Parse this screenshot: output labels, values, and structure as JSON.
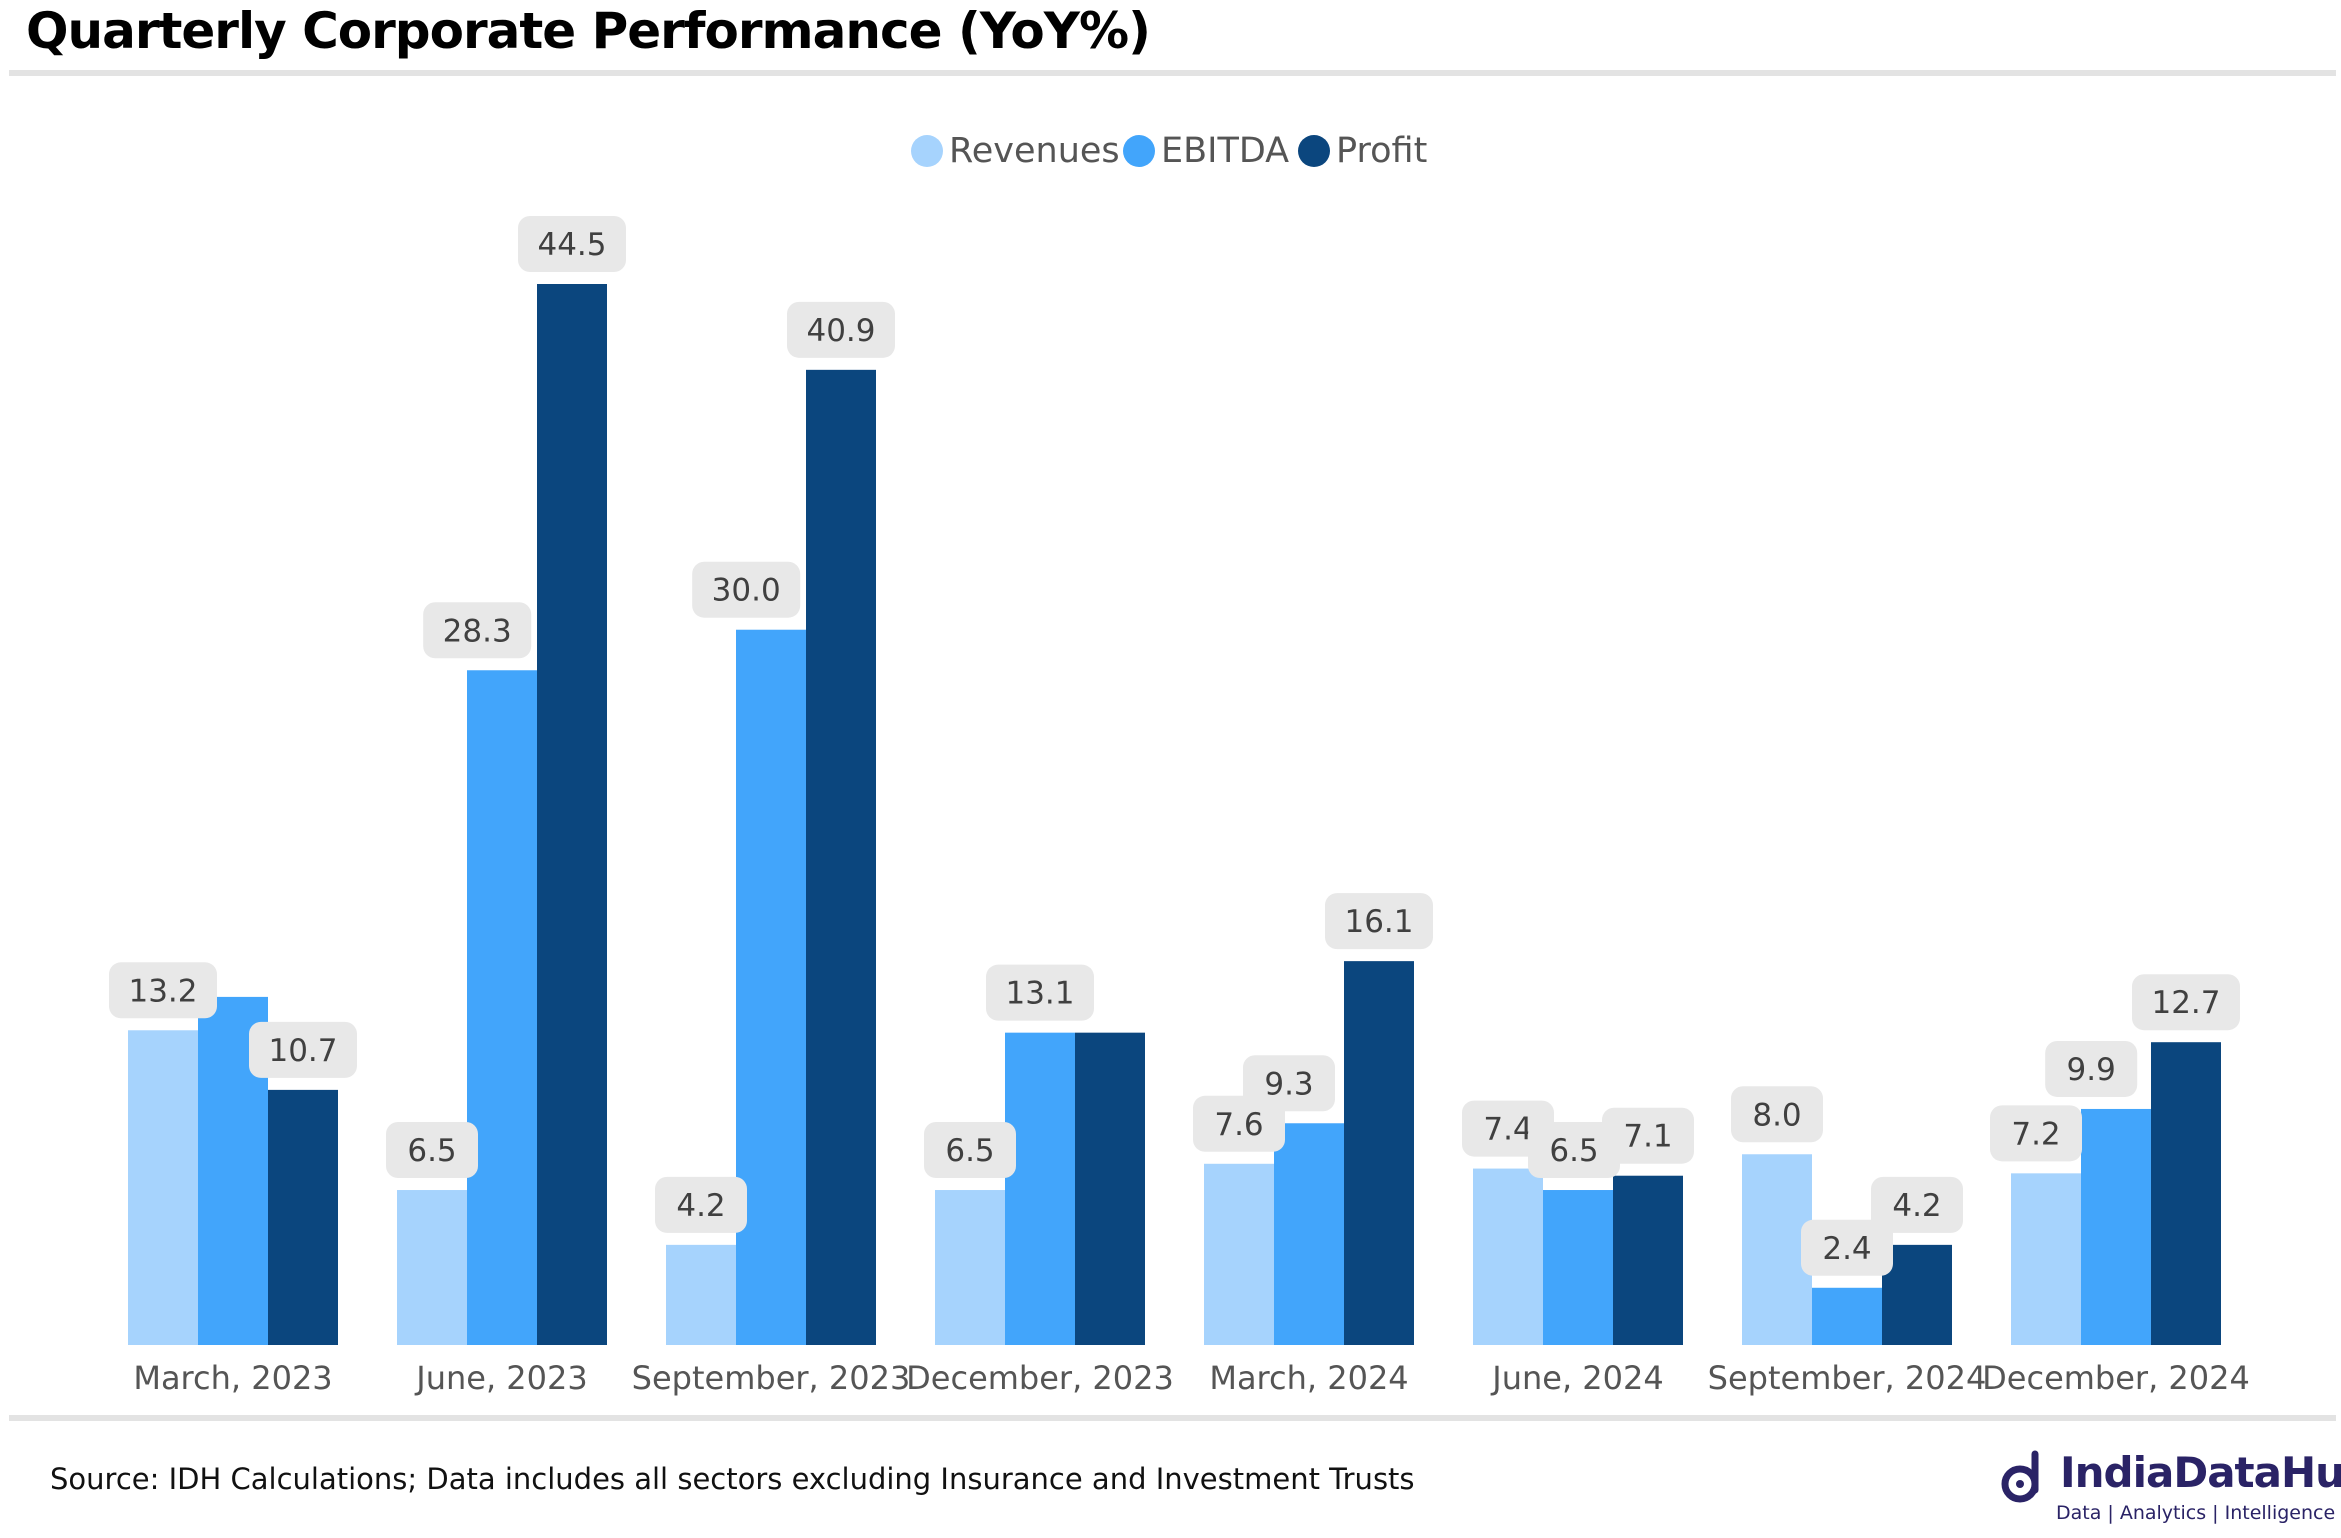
{
  "title": "Quarterly Corporate Performance (YoY%)",
  "source": "Source: IDH Calculations; Data includes all sectors excluding Insurance and Investment Trusts",
  "logo": {
    "name": "IndiaDataHub",
    "tagline": "Data | Analytics | Intelligence",
    "icon": "d-logo-icon"
  },
  "colors": {
    "Revenues": "#a6d3fd",
    "EBITDA": "#42a5fb",
    "Profit": "#0b467e",
    "label_bg": "#e8e8e8",
    "label_text": "#404040",
    "rule": "#e3e3e3"
  },
  "chart_data": {
    "type": "bar",
    "title": "Quarterly Corporate Performance (YoY%)",
    "categories": [
      "March, 2023",
      "June, 2023",
      "September, 2023",
      "December, 2023",
      "March, 2024",
      "June, 2024",
      "September, 2024",
      "December, 2024"
    ],
    "series": [
      {
        "name": "Revenues",
        "values": [
          13.2,
          6.5,
          4.2,
          6.5,
          7.6,
          7.4,
          8.0,
          7.2
        ]
      },
      {
        "name": "EBITDA",
        "values": [
          14.6,
          28.3,
          30.0,
          13.1,
          9.3,
          6.5,
          2.4,
          9.9
        ]
      },
      {
        "name": "Profit",
        "values": [
          10.7,
          44.5,
          40.9,
          13.1,
          16.1,
          7.1,
          4.2,
          12.7
        ]
      }
    ],
    "data_labels": [
      [
        "13.2",
        "6.5",
        "4.2",
        "6.5",
        "7.6",
        "7.4",
        "8.0",
        "7.2"
      ],
      [
        "",
        "28.3",
        "30.0",
        "13.1",
        "9.3",
        "6.5",
        "2.4",
        "9.9"
      ],
      [
        "10.7",
        "44.5",
        "40.9",
        "",
        "16.1",
        "7.1",
        "4.2",
        "12.7"
      ]
    ],
    "legend": [
      "Revenues",
      "EBITDA",
      "Profit"
    ],
    "legend_position": "top-center",
    "xlabel": "",
    "ylabel": "",
    "ylim": [
      0,
      44.5
    ],
    "grid": false,
    "y_axis_visible": false
  }
}
